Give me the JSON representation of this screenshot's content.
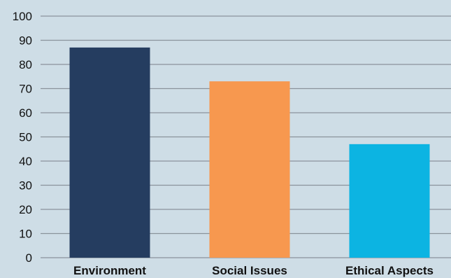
{
  "chart_data": {
    "type": "bar",
    "categories": [
      "Environment",
      "Social Issues",
      "Ethical Aspects"
    ],
    "values": [
      87,
      73,
      47
    ],
    "title": "",
    "xlabel": "",
    "ylabel": "",
    "ylim": [
      0,
      100
    ],
    "yticks": [
      0,
      10,
      20,
      30,
      40,
      50,
      60,
      70,
      80,
      90,
      100
    ],
    "grid": true,
    "legend": "none",
    "colors": [
      "#253d60",
      "#f7984f",
      "#0cb4e2"
    ],
    "background": "#cedde6",
    "gridline_color": "#8a939c"
  }
}
